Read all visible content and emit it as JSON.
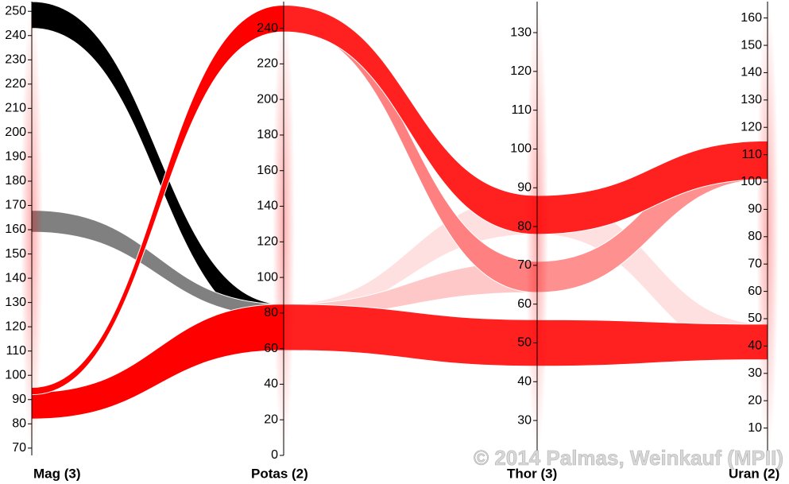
{
  "chart_data": {
    "type": "parallel",
    "axes": [
      {
        "name": "Mag (3)",
        "ylim": [
          67,
          254
        ],
        "yticks": [
          70,
          80,
          90,
          100,
          110,
          120,
          130,
          140,
          150,
          160,
          170,
          180,
          190,
          200,
          210,
          220,
          230,
          240,
          250
        ]
      },
      {
        "name": "Potas (2)",
        "ylim": [
          0,
          255
        ],
        "yticks": [
          0,
          20,
          40,
          60,
          80,
          100,
          120,
          140,
          160,
          180,
          200,
          220,
          240
        ]
      },
      {
        "name": "Thor (3)",
        "ylim": [
          21,
          138
        ],
        "yticks": [
          30,
          40,
          50,
          60,
          70,
          80,
          90,
          100,
          110,
          120,
          130
        ]
      },
      {
        "name": "Uran (2)",
        "ylim": [
          0,
          166
        ],
        "yticks": [
          10,
          20,
          30,
          40,
          50,
          60,
          70,
          80,
          90,
          100,
          110,
          120,
          130,
          140,
          150,
          160
        ]
      }
    ],
    "segments": [
      {
        "flows": [
          {
            "color": "#000000",
            "from": [
              243,
              254
            ],
            "to": [
              70,
              85
            ]
          },
          {
            "color": "#808080",
            "from": [
              159,
              168
            ],
            "to": [
              78,
              85
            ]
          },
          {
            "color": "#ff0000",
            "from": [
              82,
              93
            ],
            "to": [
              59,
              85
            ]
          },
          {
            "color": "#ff0000",
            "from": [
              92,
              95
            ],
            "to": [
              238,
              253
            ]
          }
        ]
      },
      {
        "flows": [
          {
            "color": "#ffe0e0",
            "from": [
              78,
              85
            ],
            "to": [
              78,
              88
            ]
          },
          {
            "color": "#ffc8c8",
            "from": [
              78,
              85
            ],
            "to": [
              63,
              71
            ]
          },
          {
            "color": "#ff8080",
            "from": [
              240,
              250
            ],
            "to": [
              63,
              71
            ]
          },
          {
            "color": "#ff2020",
            "from": [
              238,
              253
            ],
            "to": [
              78,
              88
            ]
          },
          {
            "color": "#ff2020",
            "from": [
              59,
              85
            ],
            "to": [
              44,
              56
            ]
          }
        ]
      },
      {
        "flows": [
          {
            "color": "#ffe0e0",
            "from": [
              78,
              88
            ],
            "to": [
              35,
              48
            ]
          },
          {
            "color": "#ff9090",
            "from": [
              63,
              71
            ],
            "to": [
              101,
              115
            ]
          },
          {
            "color": "#ff2020",
            "from": [
              78,
              88
            ],
            "to": [
              101,
              115
            ]
          },
          {
            "color": "#ff2020",
            "from": [
              44,
              56
            ],
            "to": [
              35,
              48
            ]
          }
        ]
      }
    ],
    "watermark": "© 2014 Palmas, Weinkauf (MPII)"
  }
}
